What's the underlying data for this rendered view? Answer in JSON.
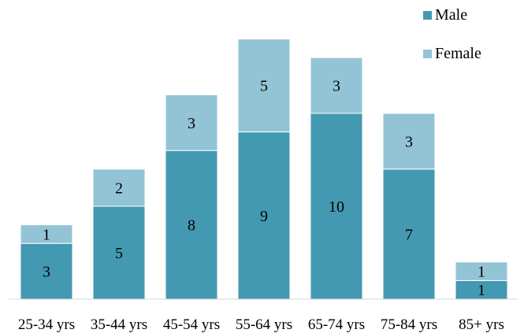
{
  "chart_data": {
    "type": "bar",
    "stacked": true,
    "categories": [
      "25-34 yrs",
      "35-44 yrs",
      "45-54 yrs",
      "55-64 yrs",
      "65-74 yrs",
      "75-84 yrs",
      "85+ yrs"
    ],
    "series": [
      {
        "name": "Male",
        "color": "#4399B1",
        "values": [
          3,
          5,
          8,
          9,
          10,
          7,
          1
        ]
      },
      {
        "name": "Female",
        "color": "#93C4D5",
        "values": [
          1,
          2,
          3,
          5,
          3,
          3,
          1
        ]
      }
    ],
    "title": "",
    "xlabel": "",
    "ylabel": "",
    "ylim": [
      0,
      14
    ],
    "grid": false,
    "legend": "top-right",
    "data_labels": true
  }
}
